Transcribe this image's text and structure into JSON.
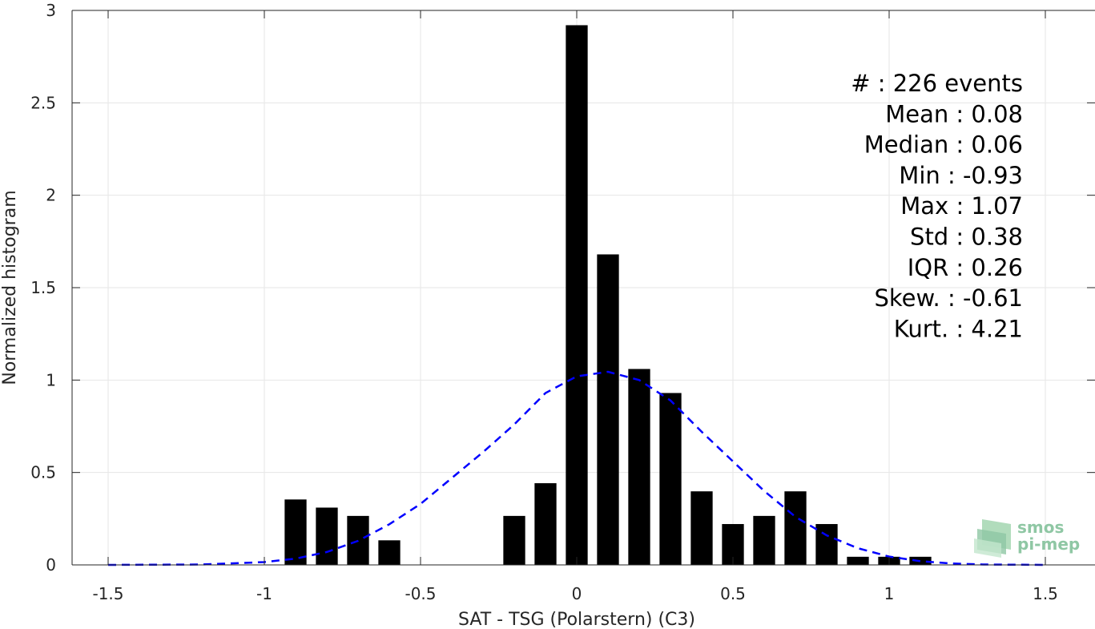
{
  "chart_data": {
    "type": "bar",
    "xlabel": "SAT - TSG (Polarstern) (C3)",
    "ylabel": "Normalized histogram",
    "xlim": [
      -1.5,
      1.5
    ],
    "ylim": [
      0,
      3
    ],
    "grid": true,
    "bar_width": 0.07,
    "bar_color": "#000000",
    "xticks": [
      -1.5,
      -1,
      -0.5,
      0,
      0.5,
      1,
      1.5
    ],
    "xtick_labels": [
      "-1.5",
      "-1",
      "-0.5",
      "0",
      "0.5",
      "1",
      "1.5"
    ],
    "yticks": [
      0,
      0.5,
      1,
      1.5,
      2,
      2.5,
      3
    ],
    "ytick_labels": [
      "0",
      "0.5",
      "1",
      "1.5",
      "2",
      "2.5",
      "3"
    ],
    "bins": {
      "x": [
        -0.9,
        -0.8,
        -0.7,
        -0.6,
        -0.2,
        -0.1,
        0,
        0.1,
        0.2,
        0.3,
        0.4,
        0.5,
        0.6,
        0.7,
        0.8,
        0.9,
        1.0,
        1.1
      ],
      "values": [
        0.354,
        0.31,
        0.265,
        0.133,
        0.265,
        0.442,
        2.92,
        1.68,
        1.06,
        0.93,
        0.398,
        0.221,
        0.265,
        0.398,
        0.221,
        0.044,
        0.044,
        0.044
      ]
    },
    "fit_curve": {
      "style": "dashed",
      "color": "#0000ff",
      "mean": 0.08,
      "std": 0.38,
      "x": [
        -1.5,
        -1.2,
        -1.0,
        -0.9,
        -0.8,
        -0.7,
        -0.6,
        -0.5,
        -0.4,
        -0.3,
        -0.2,
        -0.1,
        0.0,
        0.1,
        0.2,
        0.3,
        0.4,
        0.5,
        0.6,
        0.7,
        0.8,
        0.9,
        1.0,
        1.1,
        1.2,
        1.3,
        1.5
      ],
      "y": [
        0.0,
        0.002,
        0.015,
        0.034,
        0.07,
        0.13,
        0.22,
        0.33,
        0.47,
        0.61,
        0.76,
        0.93,
        1.02,
        1.045,
        1.0,
        0.89,
        0.72,
        0.56,
        0.4,
        0.26,
        0.16,
        0.09,
        0.045,
        0.02,
        0.008,
        0.002,
        0.0
      ]
    },
    "stats": [
      {
        "label": "#  : 226 events"
      },
      {
        "label": "Mean : 0.08"
      },
      {
        "label": "Median : 0.06"
      },
      {
        "label": "Min : -0.93"
      },
      {
        "label": "Max : 1.07"
      },
      {
        "label": "Std : 0.38"
      },
      {
        "label": "IQR : 0.26"
      },
      {
        "label": "Skew. : -0.61"
      },
      {
        "label": "Kurt. : 4.21"
      }
    ]
  },
  "logo": {
    "line1": "smos",
    "line2": "pi-mep"
  }
}
